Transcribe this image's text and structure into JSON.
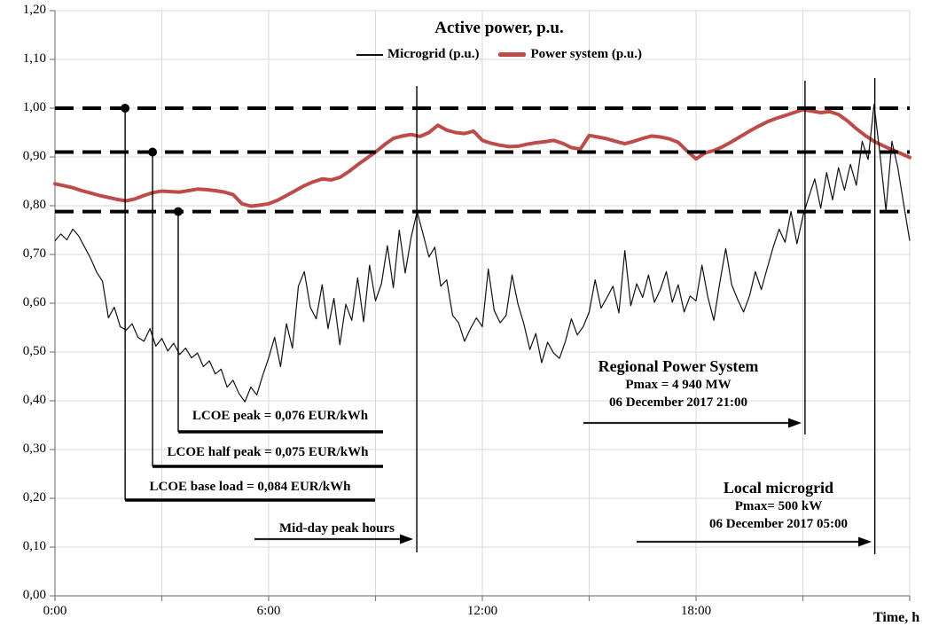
{
  "chart_data": {
    "type": "line",
    "title": "Active power, p.u.",
    "x_axis_title": "Time, h",
    "grid": true,
    "legend_position": "top",
    "x_range_hours": [
      0,
      24
    ],
    "x_gridline_interval_hours": 3,
    "x_tick_labels": [
      {
        "t": 0,
        "label": "0:00"
      },
      {
        "t": 6,
        "label": "6:00"
      },
      {
        "t": 12,
        "label": "12:00"
      },
      {
        "t": 18,
        "label": "18:00"
      }
    ],
    "y_range": [
      0,
      1.2
    ],
    "y_ticks": [
      {
        "v": 0.0,
        "label": "0,00"
      },
      {
        "v": 0.1,
        "label": "0,10"
      },
      {
        "v": 0.2,
        "label": "0,20"
      },
      {
        "v": 0.3,
        "label": "0,30"
      },
      {
        "v": 0.4,
        "label": "0,40"
      },
      {
        "v": 0.5,
        "label": "0,50"
      },
      {
        "v": 0.6,
        "label": "0,60"
      },
      {
        "v": 0.7,
        "label": "0,70"
      },
      {
        "v": 0.8,
        "label": "0,80"
      },
      {
        "v": 0.9,
        "label": "0,90"
      },
      {
        "v": 1.0,
        "label": "1,00"
      },
      {
        "v": 1.1,
        "label": "1,10"
      },
      {
        "v": 1.2,
        "label": "1,20"
      }
    ],
    "colors": {
      "microgrid": "#111111",
      "power_system": "#BE4B48",
      "gridline": "#D9D9D9",
      "axis": "#7F7F7F",
      "annotation": "#000000"
    },
    "series": [
      {
        "name": "Microgrid (p.u.)",
        "color_key": "microgrid",
        "stroke_width": 1.2,
        "start_hour": 0,
        "step_minutes": 10,
        "values": [
          0.728,
          0.742,
          0.73,
          0.752,
          0.738,
          0.715,
          0.692,
          0.664,
          0.645,
          0.57,
          0.592,
          0.552,
          0.545,
          0.558,
          0.53,
          0.522,
          0.548,
          0.512,
          0.528,
          0.502,
          0.518,
          0.495,
          0.508,
          0.488,
          0.498,
          0.47,
          0.482,
          0.455,
          0.465,
          0.428,
          0.442,
          0.415,
          0.398,
          0.428,
          0.412,
          0.452,
          0.488,
          0.53,
          0.47,
          0.558,
          0.508,
          0.635,
          0.665,
          0.592,
          0.568,
          0.638,
          0.548,
          0.61,
          0.515,
          0.598,
          0.565,
          0.652,
          0.562,
          0.678,
          0.605,
          0.64,
          0.718,
          0.632,
          0.75,
          0.662,
          0.735,
          0.788,
          0.742,
          0.695,
          0.715,
          0.635,
          0.648,
          0.575,
          0.56,
          0.522,
          0.548,
          0.57,
          0.552,
          0.67,
          0.585,
          0.56,
          0.575,
          0.658,
          0.598,
          0.557,
          0.505,
          0.538,
          0.478,
          0.52,
          0.498,
          0.487,
          0.522,
          0.568,
          0.535,
          0.552,
          0.582,
          0.648,
          0.59,
          0.612,
          0.635,
          0.58,
          0.708,
          0.595,
          0.64,
          0.612,
          0.658,
          0.602,
          0.628,
          0.665,
          0.602,
          0.638,
          0.582,
          0.615,
          0.605,
          0.678,
          0.612,
          0.565,
          0.642,
          0.712,
          0.638,
          0.608,
          0.582,
          0.615,
          0.665,
          0.628,
          0.672,
          0.715,
          0.752,
          0.725,
          0.788,
          0.722,
          0.778,
          0.818,
          0.855,
          0.795,
          0.868,
          0.812,
          0.878,
          0.832,
          0.885,
          0.842,
          0.932,
          0.895,
          1.008,
          0.905,
          0.79,
          0.932,
          0.878,
          0.802,
          0.728
        ]
      },
      {
        "name": "Power system (p.u.)",
        "color_key": "power_system",
        "stroke_width": 4,
        "start_hour": 0,
        "step_minutes": 15,
        "values": [
          0.845,
          0.841,
          0.837,
          0.831,
          0.826,
          0.821,
          0.817,
          0.813,
          0.81,
          0.814,
          0.821,
          0.827,
          0.83,
          0.829,
          0.828,
          0.831,
          0.834,
          0.833,
          0.831,
          0.828,
          0.823,
          0.804,
          0.799,
          0.801,
          0.804,
          0.811,
          0.821,
          0.831,
          0.841,
          0.849,
          0.855,
          0.853,
          0.858,
          0.87,
          0.884,
          0.897,
          0.91,
          0.925,
          0.938,
          0.943,
          0.946,
          0.942,
          0.95,
          0.965,
          0.955,
          0.95,
          0.948,
          0.953,
          0.934,
          0.928,
          0.924,
          0.921,
          0.922,
          0.926,
          0.929,
          0.931,
          0.934,
          0.928,
          0.919,
          0.916,
          0.944,
          0.941,
          0.937,
          0.932,
          0.927,
          0.932,
          0.938,
          0.943,
          0.941,
          0.937,
          0.93,
          0.912,
          0.896,
          0.908,
          0.913,
          0.921,
          0.931,
          0.942,
          0.953,
          0.963,
          0.972,
          0.979,
          0.985,
          0.991,
          0.997,
          0.994,
          0.991,
          0.993,
          0.987,
          0.974,
          0.958,
          0.944,
          0.932,
          0.923,
          0.915,
          0.907,
          0.899
        ]
      }
    ],
    "reference_dashes": [
      {
        "level": 1.0,
        "dot_time_hours": 1.97
      },
      {
        "level": 0.91,
        "dot_time_hours": 2.74
      },
      {
        "level": 0.788,
        "dot_time_hours": 3.46
      }
    ],
    "annotations": {
      "lcoe": [
        {
          "label": "LCOE peak = 0,076 EUR/kWh",
          "ref_index": 2
        },
        {
          "label": "LCOE half peak = 0,075 EUR/kWh",
          "ref_index": 1
        },
        {
          "label": "LCOE base load = 0,084 EUR/kWh",
          "ref_index": 0
        }
      ],
      "midday": {
        "label": "Mid-day peak hours",
        "line_time_hours": 10.16
      },
      "regional": {
        "title": "Regional Power System",
        "pmax": "Pmax = 4 940 MW",
        "datetime": "06 December 2017 21:00",
        "line_time_hours": 21.06
      },
      "local": {
        "title": "Local microgrid",
        "pmax": "Pmax= 500 kW",
        "datetime": "06 December 2017 05:00",
        "line_time_hours": 23.02
      }
    }
  }
}
